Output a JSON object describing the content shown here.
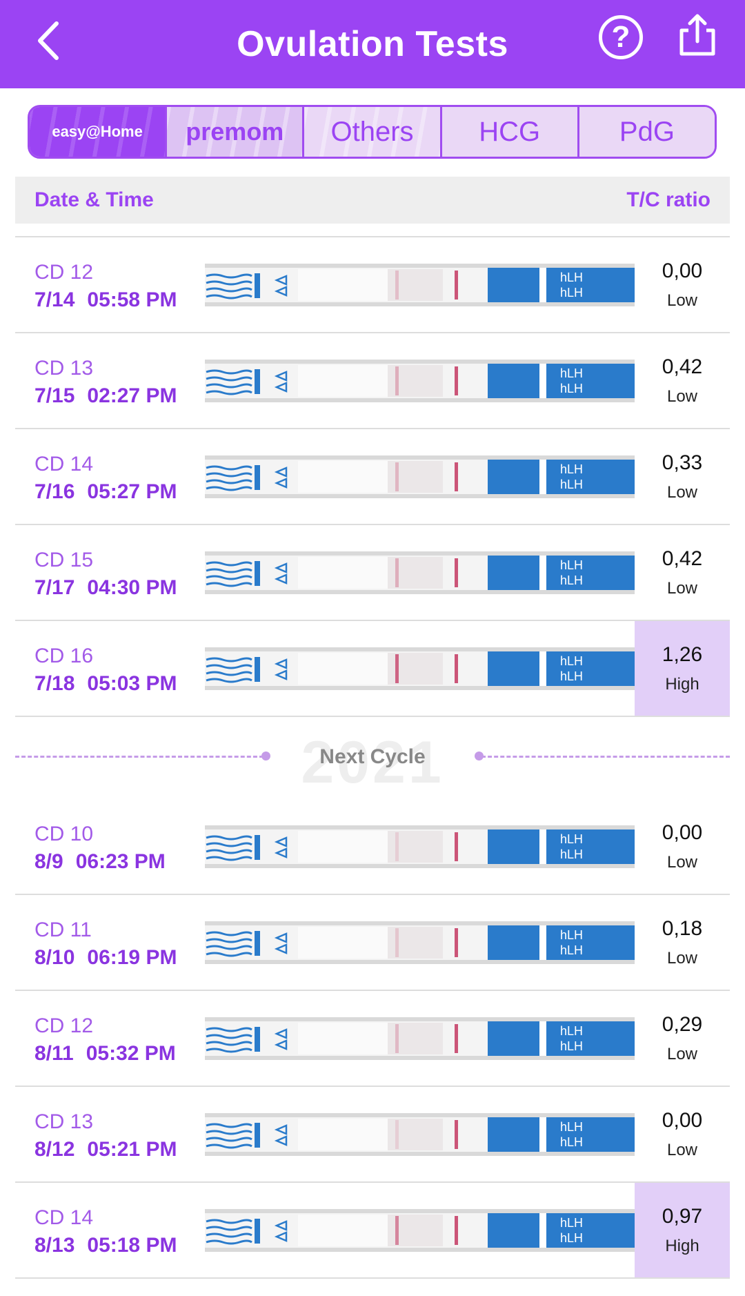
{
  "header": {
    "title": "Ovulation Tests"
  },
  "tabs": [
    {
      "label": "easy@Home",
      "style": "active"
    },
    {
      "label": "premom",
      "style": "premom"
    },
    {
      "label": "Others",
      "style": "plain"
    },
    {
      "label": "HCG",
      "style": "plain"
    },
    {
      "label": "PdG",
      "style": "plain"
    }
  ],
  "columns": {
    "date": "Date & Time",
    "ratio": "T/C ratio"
  },
  "cycle_break": {
    "label": "Next Cycle",
    "year": "2021"
  },
  "cycle1": [
    {
      "cd": "CD 12",
      "date": "7/14",
      "time": "05:58 PM",
      "ratio": "0,00",
      "level": "Low",
      "high": false,
      "strip": "hLH\nhLH",
      "t_line": 0.25
    },
    {
      "cd": "CD 13",
      "date": "7/15",
      "time": "02:27 PM",
      "ratio": "0,42",
      "level": "Low",
      "high": false,
      "strip": "hLH\nhLH",
      "t_line": 0.35
    },
    {
      "cd": "CD 14",
      "date": "7/16",
      "time": "05:27 PM",
      "ratio": "0,33",
      "level": "Low",
      "high": false,
      "strip": "hLH\nhLH",
      "t_line": 0.3
    },
    {
      "cd": "CD 15",
      "date": "7/17",
      "time": "04:30 PM",
      "ratio": "0,42",
      "level": "Low",
      "high": false,
      "strip": "hLH\nhLH",
      "t_line": 0.35
    },
    {
      "cd": "CD 16",
      "date": "7/18",
      "time": "05:03 PM",
      "ratio": "1,26",
      "level": "High",
      "high": true,
      "strip": "hLH\nhLH",
      "t_line": 0.8
    }
  ],
  "cycle2": [
    {
      "cd": "CD 10",
      "date": "8/9",
      "time": "06:23 PM",
      "ratio": "0,00",
      "level": "Low",
      "high": false,
      "strip": "hLH\nhLH",
      "t_line": 0.1
    },
    {
      "cd": "CD 11",
      "date": "8/10",
      "time": "06:19 PM",
      "ratio": "0,18",
      "level": "Low",
      "high": false,
      "strip": "hLH\nhLH",
      "t_line": 0.2
    },
    {
      "cd": "CD 12",
      "date": "8/11",
      "time": "05:32 PM",
      "ratio": "0,29",
      "level": "Low",
      "high": false,
      "strip": "hLH\nhLH",
      "t_line": 0.28
    },
    {
      "cd": "CD 13",
      "date": "8/12",
      "time": "05:21 PM",
      "ratio": "0,00",
      "level": "Low",
      "high": false,
      "strip": "hLH\nhLH",
      "t_line": 0.1
    },
    {
      "cd": "CD 14",
      "date": "8/13",
      "time": "05:18 PM",
      "ratio": "0,97",
      "level": "High",
      "high": true,
      "strip": "hLH\nhLH",
      "t_line": 0.6
    }
  ],
  "colors": {
    "accent": "#9b44f3",
    "high_bg": "#e2cff8",
    "strip_blue": "#2a7bcb",
    "test_line": "#c7446a"
  },
  "icons": {
    "back": "chevron-left-icon",
    "help": "question-circle-icon",
    "share": "share-icon"
  }
}
